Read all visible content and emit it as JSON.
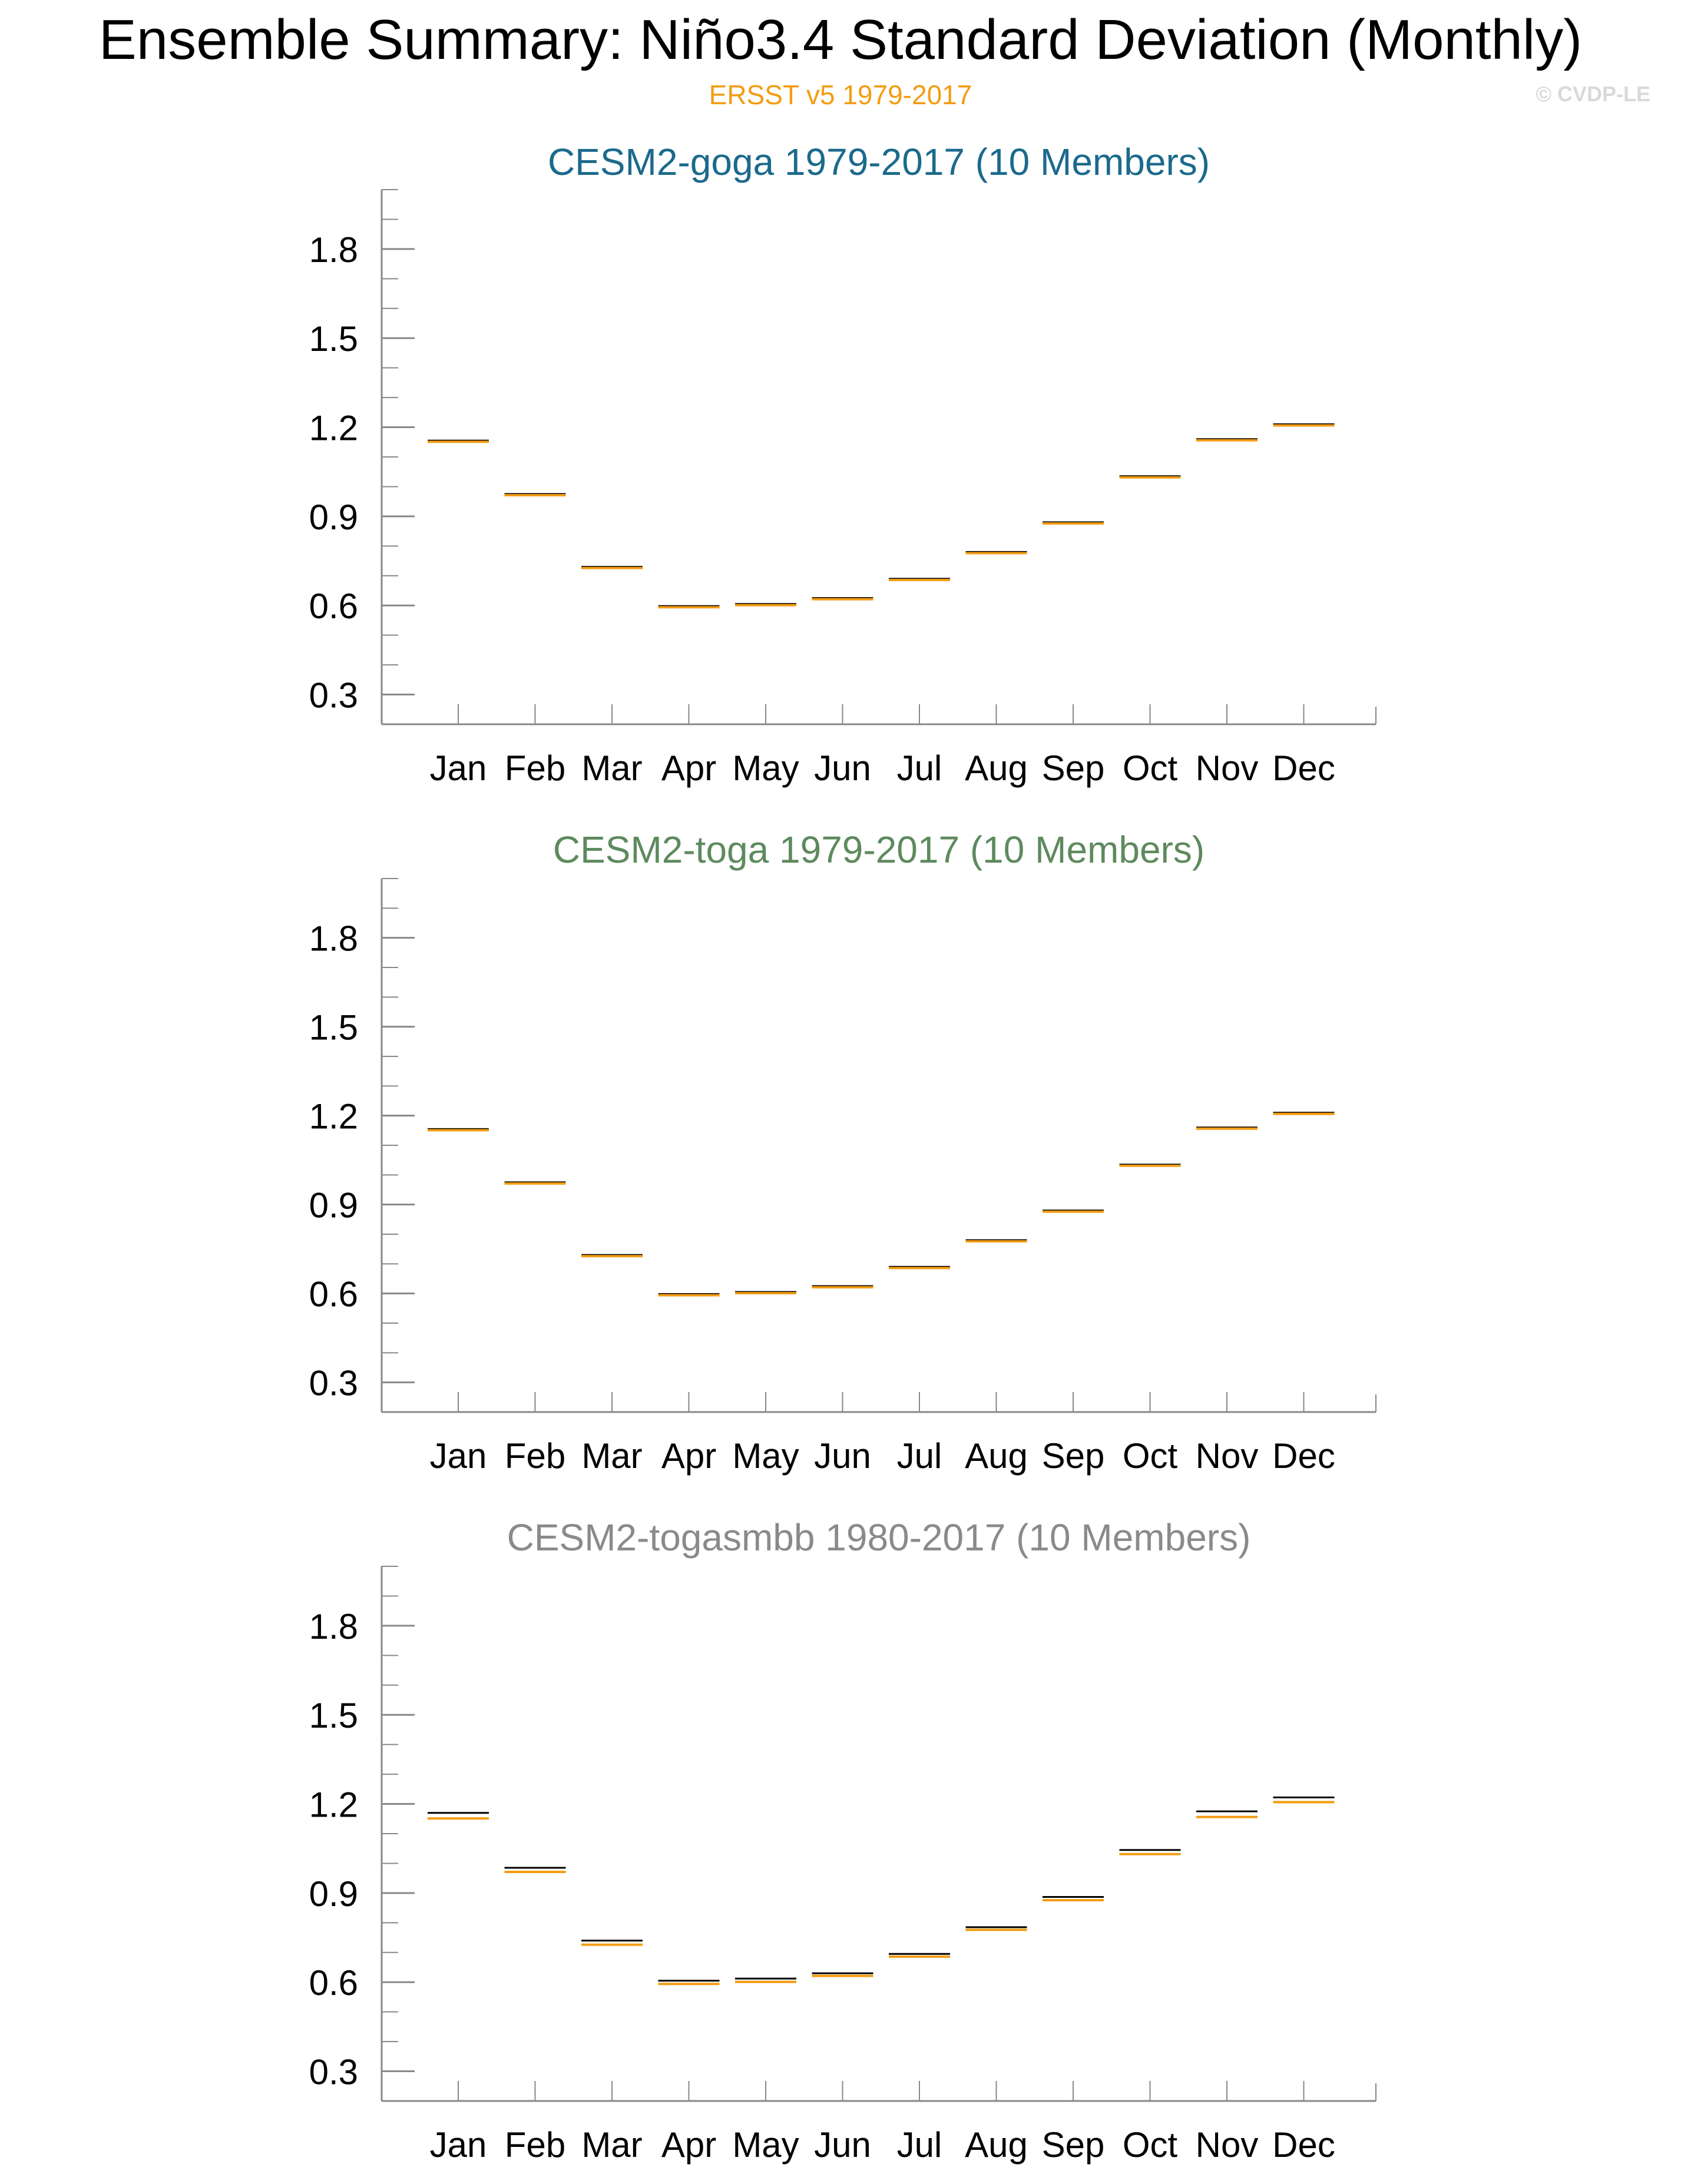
{
  "header": {
    "title": "Ensemble Summary: Niño3.4 Standard Deviation (Monthly)",
    "subtitle": "ERSST v5 1979-2017",
    "copyright": "© CVDP-LE"
  },
  "colors": {
    "observed": "#f39c12",
    "ensemble": "#000000",
    "axis": "#888888",
    "panel_titles": [
      "#1b6a8c",
      "#5e8a5e",
      "#8a8a8a"
    ]
  },
  "chart_data": [
    {
      "type": "box",
      "title": "CESM2-goga 1979-2017 (10 Members)",
      "categories": [
        "Jan",
        "Feb",
        "Mar",
        "Apr",
        "May",
        "Jun",
        "Jul",
        "Aug",
        "Sep",
        "Oct",
        "Nov",
        "Dec"
      ],
      "observed": [
        1.155,
        0.975,
        0.73,
        0.598,
        0.605,
        0.625,
        0.69,
        0.78,
        0.88,
        1.035,
        1.16,
        1.21
      ],
      "ensemble": [
        1.155,
        0.975,
        0.73,
        0.598,
        0.605,
        0.625,
        0.69,
        0.78,
        0.88,
        1.035,
        1.16,
        1.21
      ],
      "yticks": [
        "0.3",
        "0.6",
        "0.9",
        "1.2",
        "1.5",
        "1.8"
      ],
      "ylim": [
        0.2,
        2.0
      ]
    },
    {
      "type": "box",
      "title": "CESM2-toga 1979-2017 (10 Members)",
      "categories": [
        "Jan",
        "Feb",
        "Mar",
        "Apr",
        "May",
        "Jun",
        "Jul",
        "Aug",
        "Sep",
        "Oct",
        "Nov",
        "Dec"
      ],
      "observed": [
        1.155,
        0.975,
        0.73,
        0.598,
        0.605,
        0.625,
        0.69,
        0.78,
        0.88,
        1.035,
        1.16,
        1.21
      ],
      "ensemble": [
        1.155,
        0.975,
        0.73,
        0.598,
        0.605,
        0.625,
        0.69,
        0.78,
        0.88,
        1.035,
        1.16,
        1.21
      ],
      "yticks": [
        "0.3",
        "0.6",
        "0.9",
        "1.2",
        "1.5",
        "1.8"
      ],
      "ylim": [
        0.2,
        2.0
      ]
    },
    {
      "type": "box",
      "title": "CESM2-togasmbb 1980-2017 (10 Members)",
      "categories": [
        "Jan",
        "Feb",
        "Mar",
        "Apr",
        "May",
        "Jun",
        "Jul",
        "Aug",
        "Sep",
        "Oct",
        "Nov",
        "Dec"
      ],
      "observed": [
        1.155,
        0.975,
        0.73,
        0.598,
        0.605,
        0.625,
        0.69,
        0.78,
        0.88,
        1.035,
        1.16,
        1.21
      ],
      "ensemble": [
        1.17,
        0.985,
        0.74,
        0.605,
        0.612,
        0.63,
        0.695,
        0.785,
        0.887,
        1.045,
        1.175,
        1.222
      ],
      "yticks": [
        "0.3",
        "0.6",
        "0.9",
        "1.2",
        "1.5",
        "1.8"
      ],
      "ylim": [
        0.2,
        2.0
      ]
    }
  ]
}
